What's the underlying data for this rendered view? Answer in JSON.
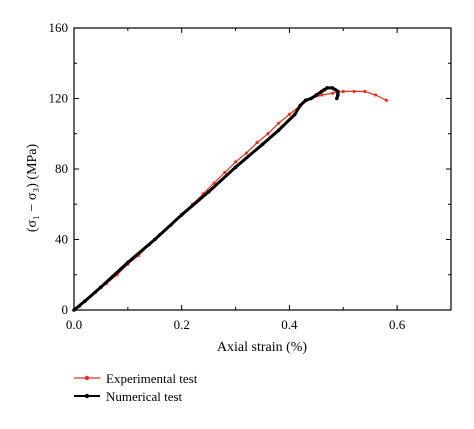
{
  "chart_data": {
    "type": "line",
    "title": "",
    "xlabel": "Axial strain (%)",
    "ylabel": "(σ₁ − σ₃) (MPa)",
    "xlim": [
      0.0,
      0.7
    ],
    "ylim": [
      0,
      160
    ],
    "x_ticks": [
      0.0,
      0.2,
      0.4,
      0.6
    ],
    "x_tick_labels": [
      "0.0",
      "0.2",
      "0.4",
      "0.6"
    ],
    "y_ticks": [
      0,
      40,
      80,
      120,
      160
    ],
    "y_tick_labels": [
      "0",
      "40",
      "80",
      "120",
      "160"
    ],
    "grid": false,
    "legend_position": "bottom-left-outside",
    "series": [
      {
        "name": "Experimental test",
        "color": "#e8321e",
        "marker": "small-dot",
        "x": [
          0.0,
          0.01,
          0.02,
          0.04,
          0.06,
          0.08,
          0.1,
          0.12,
          0.14,
          0.16,
          0.18,
          0.2,
          0.22,
          0.24,
          0.26,
          0.28,
          0.3,
          0.32,
          0.34,
          0.36,
          0.38,
          0.4,
          0.42,
          0.44,
          0.46,
          0.48,
          0.5,
          0.52,
          0.54,
          0.56,
          0.58
        ],
        "y": [
          0,
          2,
          5,
          10,
          15,
          20,
          26,
          31,
          37,
          43,
          48,
          54,
          60,
          66,
          72,
          78,
          84,
          89,
          95,
          100,
          106,
          111,
          116,
          120,
          122,
          123,
          124,
          124,
          124,
          122,
          119
        ]
      },
      {
        "name": "Numerical test",
        "color": "#000000",
        "marker": "dense-dot",
        "x": [
          0.0,
          0.02,
          0.05,
          0.1,
          0.15,
          0.2,
          0.25,
          0.3,
          0.35,
          0.38,
          0.41,
          0.42,
          0.43,
          0.44,
          0.45,
          0.46,
          0.465,
          0.47,
          0.48,
          0.485,
          0.49,
          0.49,
          0.488
        ],
        "y": [
          0,
          5,
          13,
          27,
          40,
          54,
          67,
          81,
          94,
          102,
          111,
          116,
          119,
          120,
          122,
          124,
          125,
          126,
          126,
          125,
          124,
          122,
          120
        ]
      }
    ]
  }
}
